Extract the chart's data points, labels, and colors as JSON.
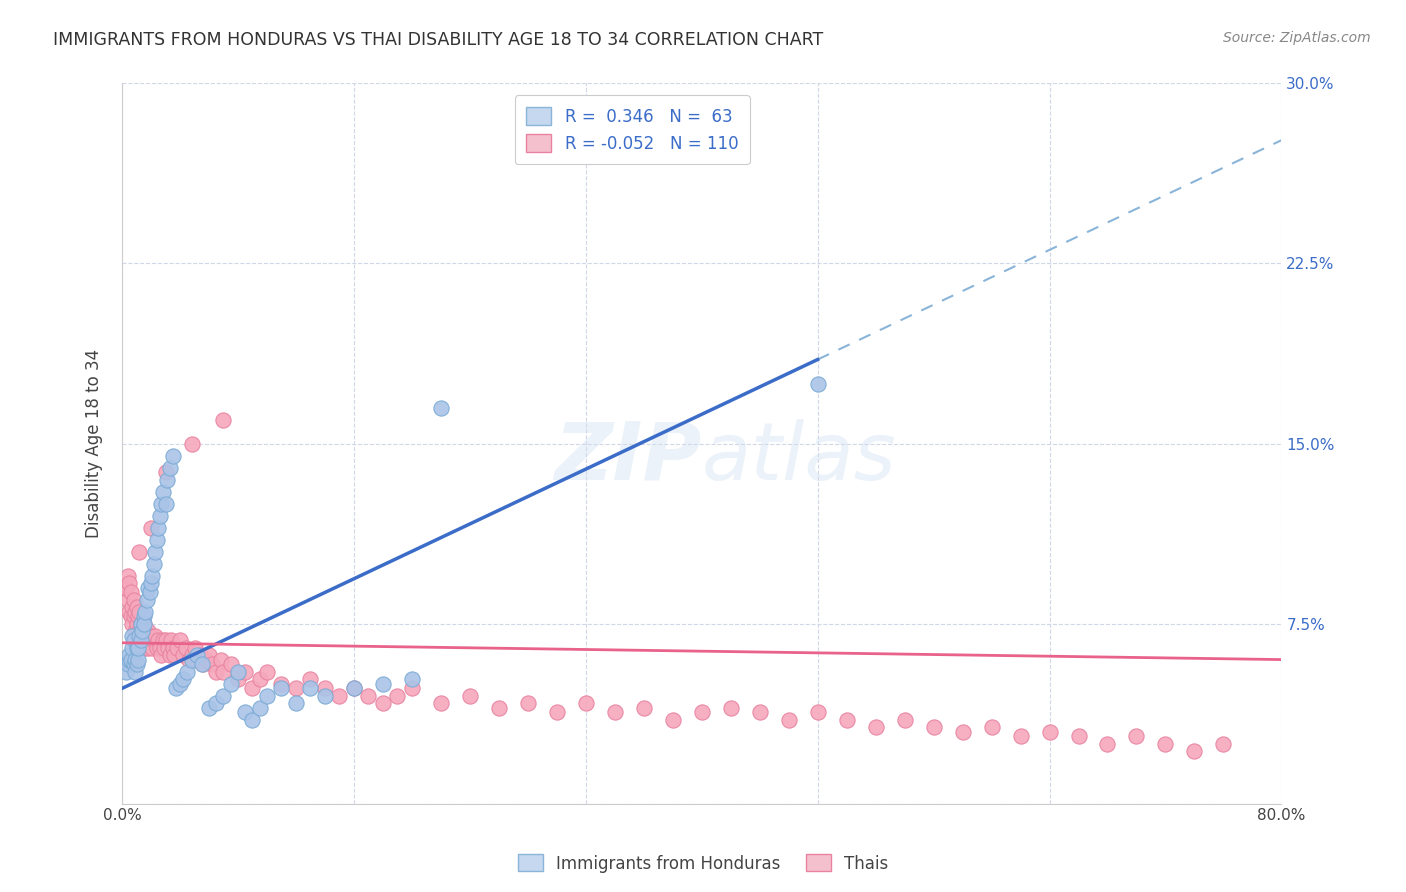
{
  "title": "IMMIGRANTS FROM HONDURAS VS THAI DISABILITY AGE 18 TO 34 CORRELATION CHART",
  "source": "Source: ZipAtlas.com",
  "ylabel": "Disability Age 18 to 34",
  "xlim": [
    0.0,
    0.8
  ],
  "ylim": [
    0.0,
    0.3
  ],
  "xtick_positions": [
    0.0,
    0.16,
    0.32,
    0.48,
    0.64,
    0.8
  ],
  "xtick_labels": [
    "0.0%",
    "",
    "",
    "",
    "",
    "80.0%"
  ],
  "ytick_positions": [
    0.0,
    0.075,
    0.15,
    0.225,
    0.3
  ],
  "ytick_labels_right": [
    "",
    "7.5%",
    "15.0%",
    "22.5%",
    "30.0%"
  ],
  "watermark": "ZIPatlas",
  "blue_scatter": "#aac4e8",
  "blue_edge": "#7aaad4",
  "pink_scatter": "#f5a8bc",
  "pink_edge": "#e882a0",
  "blue_trend": "#3a6cc8",
  "blue_dashed": "#aac4e8",
  "pink_trend": "#e8628a",
  "legend_blue_face": "#c5d8f0",
  "legend_pink_face": "#f5c0ce",
  "honduras_x": [
    0.003,
    0.004,
    0.005,
    0.005,
    0.006,
    0.007,
    0.007,
    0.008,
    0.008,
    0.009,
    0.009,
    0.01,
    0.01,
    0.011,
    0.011,
    0.012,
    0.013,
    0.013,
    0.014,
    0.015,
    0.015,
    0.016,
    0.017,
    0.018,
    0.019,
    0.02,
    0.021,
    0.022,
    0.023,
    0.024,
    0.025,
    0.026,
    0.027,
    0.028,
    0.03,
    0.031,
    0.033,
    0.035,
    0.037,
    0.04,
    0.042,
    0.045,
    0.048,
    0.052,
    0.055,
    0.06,
    0.065,
    0.07,
    0.075,
    0.08,
    0.085,
    0.09,
    0.095,
    0.1,
    0.11,
    0.12,
    0.13,
    0.14,
    0.16,
    0.18,
    0.2,
    0.22,
    0.48
  ],
  "honduras_y": [
    0.055,
    0.058,
    0.06,
    0.062,
    0.06,
    0.065,
    0.07,
    0.068,
    0.058,
    0.055,
    0.06,
    0.065,
    0.058,
    0.06,
    0.065,
    0.07,
    0.075,
    0.068,
    0.072,
    0.078,
    0.075,
    0.08,
    0.085,
    0.09,
    0.088,
    0.092,
    0.095,
    0.1,
    0.105,
    0.11,
    0.115,
    0.12,
    0.125,
    0.13,
    0.125,
    0.135,
    0.14,
    0.145,
    0.048,
    0.05,
    0.052,
    0.055,
    0.06,
    0.062,
    0.058,
    0.04,
    0.042,
    0.045,
    0.05,
    0.055,
    0.038,
    0.035,
    0.04,
    0.045,
    0.048,
    0.042,
    0.048,
    0.045,
    0.048,
    0.05,
    0.052,
    0.165,
    0.175
  ],
  "thai_x": [
    0.003,
    0.004,
    0.004,
    0.005,
    0.005,
    0.006,
    0.006,
    0.007,
    0.007,
    0.008,
    0.008,
    0.009,
    0.009,
    0.01,
    0.01,
    0.011,
    0.012,
    0.012,
    0.013,
    0.013,
    0.014,
    0.015,
    0.015,
    0.016,
    0.016,
    0.017,
    0.018,
    0.018,
    0.019,
    0.02,
    0.021,
    0.022,
    0.023,
    0.024,
    0.025,
    0.026,
    0.027,
    0.028,
    0.029,
    0.03,
    0.032,
    0.033,
    0.034,
    0.035,
    0.036,
    0.038,
    0.04,
    0.042,
    0.044,
    0.046,
    0.048,
    0.05,
    0.052,
    0.054,
    0.056,
    0.058,
    0.06,
    0.062,
    0.065,
    0.068,
    0.07,
    0.075,
    0.08,
    0.085,
    0.09,
    0.095,
    0.1,
    0.11,
    0.12,
    0.13,
    0.14,
    0.15,
    0.16,
    0.17,
    0.18,
    0.19,
    0.2,
    0.22,
    0.24,
    0.26,
    0.28,
    0.3,
    0.32,
    0.34,
    0.36,
    0.38,
    0.4,
    0.42,
    0.44,
    0.46,
    0.48,
    0.5,
    0.52,
    0.54,
    0.56,
    0.58,
    0.6,
    0.62,
    0.64,
    0.66,
    0.68,
    0.7,
    0.72,
    0.74,
    0.76,
    0.012,
    0.02,
    0.03,
    0.048,
    0.07
  ],
  "thai_y": [
    0.09,
    0.085,
    0.095,
    0.08,
    0.092,
    0.078,
    0.088,
    0.082,
    0.075,
    0.085,
    0.078,
    0.08,
    0.072,
    0.075,
    0.082,
    0.078,
    0.08,
    0.072,
    0.075,
    0.068,
    0.072,
    0.075,
    0.068,
    0.07,
    0.065,
    0.068,
    0.072,
    0.065,
    0.068,
    0.07,
    0.065,
    0.068,
    0.07,
    0.065,
    0.068,
    0.065,
    0.062,
    0.068,
    0.065,
    0.068,
    0.065,
    0.062,
    0.068,
    0.065,
    0.062,
    0.065,
    0.068,
    0.062,
    0.065,
    0.06,
    0.062,
    0.065,
    0.06,
    0.062,
    0.058,
    0.06,
    0.062,
    0.058,
    0.055,
    0.06,
    0.055,
    0.058,
    0.052,
    0.055,
    0.048,
    0.052,
    0.055,
    0.05,
    0.048,
    0.052,
    0.048,
    0.045,
    0.048,
    0.045,
    0.042,
    0.045,
    0.048,
    0.042,
    0.045,
    0.04,
    0.042,
    0.038,
    0.042,
    0.038,
    0.04,
    0.035,
    0.038,
    0.04,
    0.038,
    0.035,
    0.038,
    0.035,
    0.032,
    0.035,
    0.032,
    0.03,
    0.032,
    0.028,
    0.03,
    0.028,
    0.025,
    0.028,
    0.025,
    0.022,
    0.025,
    0.105,
    0.115,
    0.138,
    0.15,
    0.16
  ],
  "blue_trend_x0": 0.0,
  "blue_trend_y0": 0.048,
  "blue_trend_x1": 0.48,
  "blue_trend_y1": 0.185,
  "pink_trend_x0": 0.0,
  "pink_trend_y0": 0.067,
  "pink_trend_x1": 0.8,
  "pink_trend_y1": 0.06
}
